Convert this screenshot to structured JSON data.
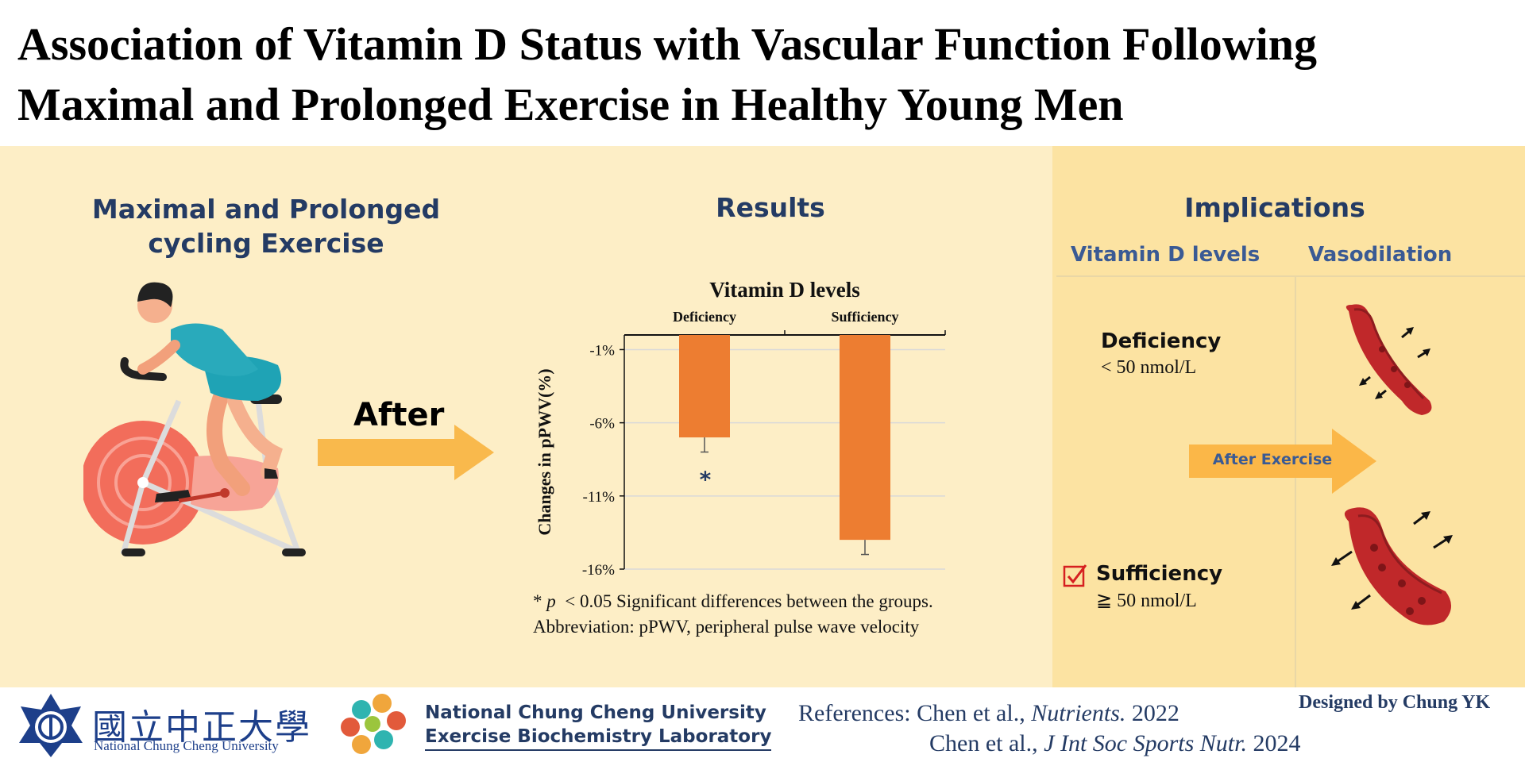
{
  "title": {
    "line1": "Association of Vitamin D Status with Vascular Function Following",
    "line2": "Maximal and Prolonged Exercise in Healthy Young Men"
  },
  "left": {
    "heading_line1": "Maximal and Prolonged",
    "heading_line2": "cycling Exercise",
    "after_label": "After"
  },
  "results": {
    "heading": "Results",
    "significance_marker": "*",
    "footnote_line1_p": "p",
    "footnote_line1_star": "*",
    "footnote_line1_rest": "< 0.05 Significant differences between the groups.",
    "footnote_line2": "Abbreviation: pPWV, peripheral pulse wave velocity"
  },
  "chart_data": {
    "type": "bar",
    "title": "Vitamin D levels",
    "categories": [
      "Deficiency",
      "Sufficiency"
    ],
    "values": [
      -7.0,
      -14.0
    ],
    "errors": [
      1.0,
      1.0
    ],
    "ylabel": "Changes in pPWV(%)",
    "ylim": [
      -16,
      0
    ],
    "yticks": [
      -1,
      -6,
      -11,
      -16
    ],
    "ytick_labels": [
      "-1%",
      "-6%",
      "-11%",
      "-16%"
    ],
    "grid": true,
    "colors": {
      "bar": "#ed7d31"
    }
  },
  "implications": {
    "heading": "Implications",
    "col1_header": "Vitamin D levels",
    "col2_header": "Vasodilation",
    "deficiency_title": "Deficiency",
    "deficiency_value": "< 50 nmol/L",
    "arrow_label": "After Exercise",
    "sufficiency_title": "Sufficiency",
    "sufficiency_value": "≧ 50 nmol/L"
  },
  "footer": {
    "university_cn": "國立中正大學",
    "university_en": "National Chung Cheng University",
    "lab_line1": "National Chung Cheng University",
    "lab_line2": "Exercise Biochemistry Laboratory",
    "ref1_prefix": "References: Chen et al.,",
    "ref1_journal": "Nutrients.",
    "ref1_year": "2022",
    "ref2_prefix": "Chen et al.,",
    "ref2_journal": "J Int Soc Sports Nutr.",
    "ref2_year": "2024",
    "designed_by": "Designed by Chung YK"
  },
  "colors": {
    "heading_blue": "#243b64",
    "panel_left": "#fdeec6",
    "panel_right": "#fce3a2",
    "arrow_yellow": "#f9b94c",
    "bar_orange": "#ed7d31",
    "vessel_red": "#c0282a"
  },
  "icons": [
    "cyclist-illustration",
    "arrow-right-icon",
    "blood-vessel-constricted-icon",
    "blood-vessel-dilated-icon",
    "checkbox-checked-icon",
    "university-emblem-icon",
    "lab-logo-icon"
  ]
}
